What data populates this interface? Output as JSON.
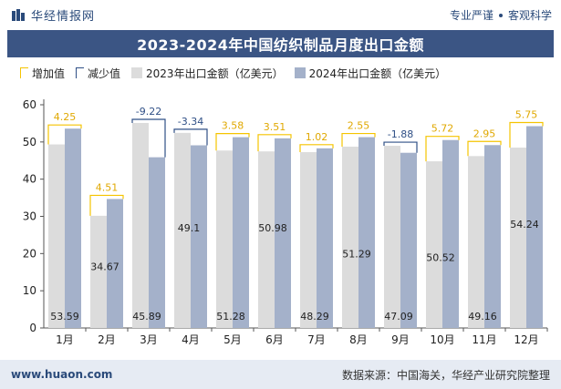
{
  "header": {
    "brand": "华经情报网",
    "tag1": "专业严谨",
    "tag2": "客观科学"
  },
  "footer": {
    "url": "www.huaon.com",
    "source": "数据来源：中国海关，华经产业研究院整理"
  },
  "colors": {
    "increase": "#f5c400",
    "decrease": "#2f4f86",
    "bar2023": "#dcdcdc",
    "bar2024": "#a4b1ca",
    "title_bg": "#3b5584"
  },
  "chart_data": {
    "type": "bar",
    "title": "2023-2024年中国纺织制品月度出口金额",
    "categories": [
      "1月",
      "2月",
      "3月",
      "4月",
      "5月",
      "6月",
      "7月",
      "8月",
      "9月",
      "10月",
      "11月",
      "12月"
    ],
    "series": [
      {
        "name": "2023年出口金额（亿美元）",
        "values": [
          49.34,
          30.16,
          55.11,
          52.44,
          47.7,
          47.47,
          47.27,
          48.74,
          48.97,
          44.8,
          46.21,
          48.49
        ]
      },
      {
        "name": "2024年出口金额（亿美元）",
        "values": [
          53.59,
          34.67,
          45.89,
          49.1,
          51.28,
          50.98,
          48.29,
          51.29,
          47.09,
          50.52,
          49.16,
          54.24
        ]
      }
    ],
    "change_series": [
      {
        "name": "增加值",
        "kind": "increase"
      },
      {
        "name": "减少值",
        "kind": "decrease"
      }
    ],
    "changes": [
      4.25,
      4.51,
      -9.22,
      -3.34,
      3.58,
      3.51,
      1.02,
      2.55,
      -1.88,
      5.72,
      2.95,
      5.75
    ],
    "change_labels": [
      "4.25",
      "4.51",
      "-9.22",
      "-3.34",
      "3.58",
      "3.51",
      "1.02",
      "2.55",
      "-1.88",
      "5.72",
      "2.95",
      "5.75"
    ],
    "value_labels": [
      "53.59",
      "34.67",
      "45.89",
      "49.1",
      "51.28",
      "50.98",
      "48.29",
      "51.29",
      "47.09",
      "50.52",
      "49.16",
      "54.24"
    ],
    "yticks": [
      "0",
      "10",
      "20",
      "30",
      "40",
      "50",
      "60"
    ],
    "ylim": [
      0,
      60
    ],
    "legend_position": "top-left",
    "grid": false
  }
}
